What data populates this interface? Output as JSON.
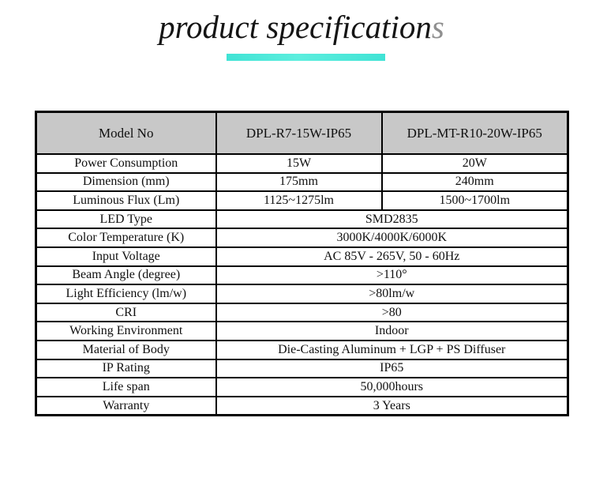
{
  "theme": {
    "accent": "#40e3d5",
    "border": "#000000",
    "header-bg": "#c8c8c8"
  },
  "title": {
    "main": "product specification",
    "tail": "s"
  },
  "table": {
    "header": [
      "Model No",
      "DPL-R7-15W-IP65",
      "DPL-MT-R10-20W-IP65"
    ],
    "rows": [
      {
        "label": "Power Consumption",
        "values": [
          "15W",
          "20W"
        ]
      },
      {
        "label": "Dimension (mm)",
        "values": [
          "175mm",
          "240mm"
        ]
      },
      {
        "label": "Luminous Flux (Lm)",
        "values": [
          "1125~1275lm",
          "1500~1700lm"
        ]
      },
      {
        "label": "LED Type",
        "span": "SMD2835"
      },
      {
        "label": "Color Temperature (K)",
        "span": "3000K/4000K/6000K"
      },
      {
        "label": "Input Voltage",
        "span": "AC 85V - 265V, 50 - 60Hz"
      },
      {
        "label": "Beam Angle (degree)",
        "span": ">110°"
      },
      {
        "label": "Light Efficiency (lm/w)",
        "span": ">80lm/w"
      },
      {
        "label": "CRI",
        "span": ">80"
      },
      {
        "label": "Working Environment",
        "span": "Indoor"
      },
      {
        "label": "Material of Body",
        "span": "Die-Casting Aluminum + LGP + PS Diffuser"
      },
      {
        "label": "IP Rating",
        "span": "IP65"
      },
      {
        "label": "Life span",
        "span": "50,000hours"
      },
      {
        "label": "Warranty",
        "span": "3 Years"
      }
    ]
  }
}
